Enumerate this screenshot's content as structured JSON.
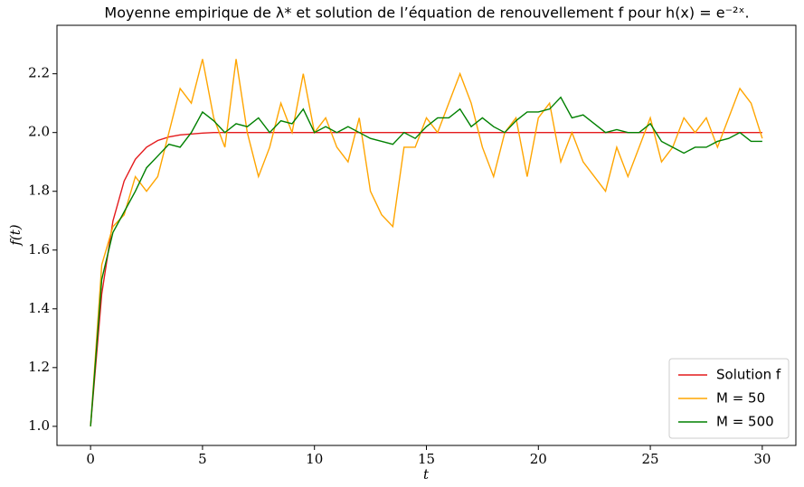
{
  "chart_data": {
    "type": "line",
    "title": "Moyenne empirique de λ* et solution de l’équation de renouvellement f pour h(x) = e⁻²ˣ.",
    "xlabel": "t",
    "ylabel": "f(t)",
    "x": [
      0,
      0.5,
      1,
      1.5,
      2,
      2.5,
      3,
      3.5,
      4,
      4.5,
      5,
      5.5,
      6,
      6.5,
      7,
      7.5,
      8,
      8.5,
      9,
      9.5,
      10,
      10.5,
      11,
      11.5,
      12,
      12.5,
      13,
      13.5,
      14,
      14.5,
      15,
      15.5,
      16,
      16.5,
      17,
      17.5,
      18,
      18.5,
      19,
      19.5,
      20,
      20.5,
      21,
      21.5,
      22,
      22.5,
      23,
      23.5,
      24,
      24.5,
      25,
      25.5,
      26,
      26.5,
      27,
      27.5,
      28,
      28.5,
      29,
      29.5,
      30
    ],
    "series": [
      {
        "name": "Solution f",
        "color": "#e41a1c",
        "values": [
          1.0,
          1.451,
          1.699,
          1.835,
          1.909,
          1.95,
          1.973,
          1.985,
          1.992,
          1.995,
          1.998,
          2,
          2,
          2,
          2,
          2,
          2,
          2,
          2,
          2,
          2,
          2,
          2,
          2,
          2,
          2,
          2,
          2,
          2,
          2,
          2,
          2,
          2,
          2,
          2,
          2,
          2,
          2,
          2,
          2,
          2,
          2,
          2,
          2,
          2,
          2,
          2,
          2,
          2,
          2,
          2,
          2,
          2,
          2,
          2,
          2,
          2,
          2,
          2,
          2,
          2
        ]
      },
      {
        "name": "M = 50",
        "color": "#ffa500",
        "values": [
          1.0,
          1.55,
          1.68,
          1.72,
          1.85,
          1.8,
          1.85,
          2.0,
          2.15,
          2.1,
          2.25,
          2.05,
          1.95,
          2.25,
          2.0,
          1.85,
          1.95,
          2.1,
          2.0,
          2.2,
          2.0,
          2.05,
          1.95,
          1.9,
          2.05,
          1.8,
          1.72,
          1.68,
          1.95,
          1.95,
          2.05,
          2.0,
          2.1,
          2.2,
          2.1,
          1.95,
          1.85,
          2.0,
          2.05,
          1.85,
          2.05,
          2.1,
          1.9,
          2.0,
          1.9,
          1.85,
          1.8,
          1.95,
          1.85,
          1.95,
          2.05,
          1.9,
          1.95,
          2.05,
          2.0,
          2.05,
          1.95,
          2.05,
          2.15,
          2.1,
          1.98
        ]
      },
      {
        "name": "M = 500",
        "color": "#008000",
        "values": [
          1.0,
          1.5,
          1.66,
          1.73,
          1.8,
          1.88,
          1.92,
          1.96,
          1.95,
          2.0,
          2.07,
          2.04,
          2.0,
          2.03,
          2.02,
          2.05,
          2.0,
          2.04,
          2.03,
          2.08,
          2.0,
          2.02,
          2.0,
          2.02,
          2.0,
          1.98,
          1.97,
          1.96,
          2.0,
          1.98,
          2.02,
          2.05,
          2.05,
          2.08,
          2.02,
          2.05,
          2.02,
          2.0,
          2.04,
          2.07,
          2.07,
          2.08,
          2.12,
          2.05,
          2.06,
          2.03,
          2.0,
          2.01,
          2.0,
          2.0,
          2.03,
          1.97,
          1.95,
          1.93,
          1.95,
          1.95,
          1.97,
          1.98,
          2.0,
          1.97,
          1.97
        ]
      }
    ],
    "xlim": [
      -1.5,
      31.5
    ],
    "ylim": [
      0.935,
      2.365
    ],
    "xticks": [
      0,
      5,
      10,
      15,
      20,
      25,
      30
    ],
    "yticks": [
      {
        "value": 1,
        "label": "1.0"
      },
      1.2,
      1.4,
      1.6,
      1.8,
      {
        "value": 2,
        "label": "2.0"
      },
      2.2
    ],
    "legend": "lower right"
  }
}
